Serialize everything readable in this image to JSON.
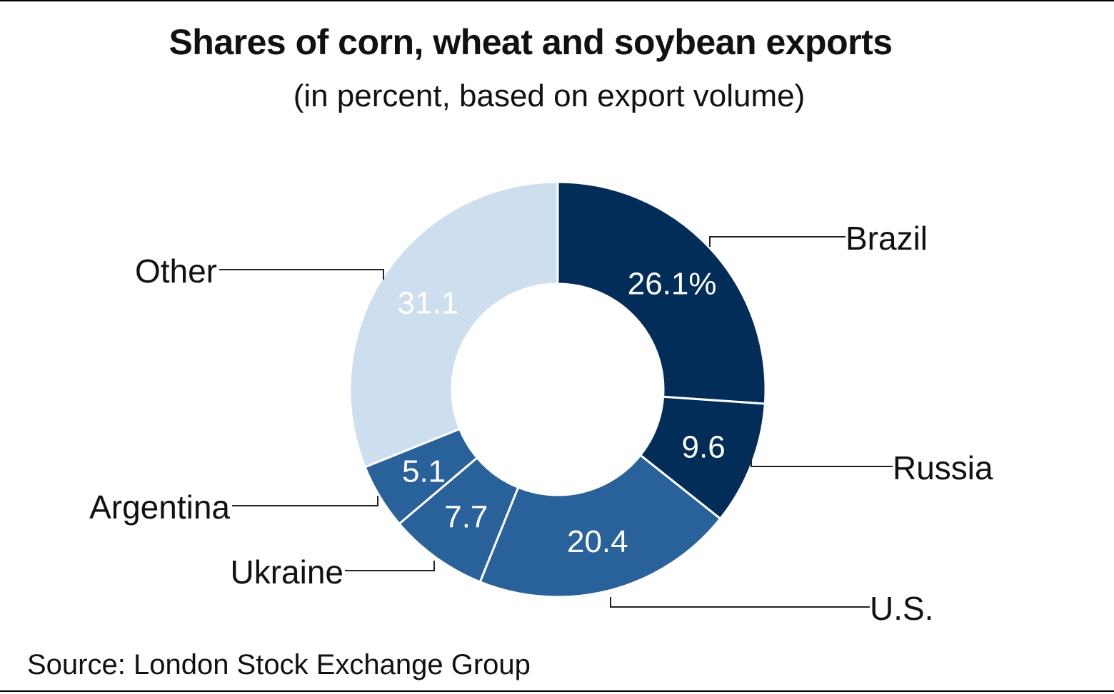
{
  "chart_data": {
    "type": "pie",
    "title": "Shares of corn, wheat and soybean exports",
    "subtitle": "(in percent, based on export volume)",
    "source": "Source: London Stock Exchange Group",
    "categories": [
      "Brazil",
      "Russia",
      "U.S.",
      "Ukraine",
      "Argentina",
      "Other"
    ],
    "values": [
      26.1,
      9.6,
      20.4,
      7.7,
      5.1,
      31.1
    ],
    "value_labels": [
      "26.1%",
      "9.6",
      "20.4",
      "7.7",
      "5.1",
      "31.1"
    ],
    "colors": [
      "#032d59",
      "#032d59",
      "#29629a",
      "#29629a",
      "#29629a",
      "#cddfee"
    ],
    "label_color_other": "#ffffff",
    "donut": true
  }
}
